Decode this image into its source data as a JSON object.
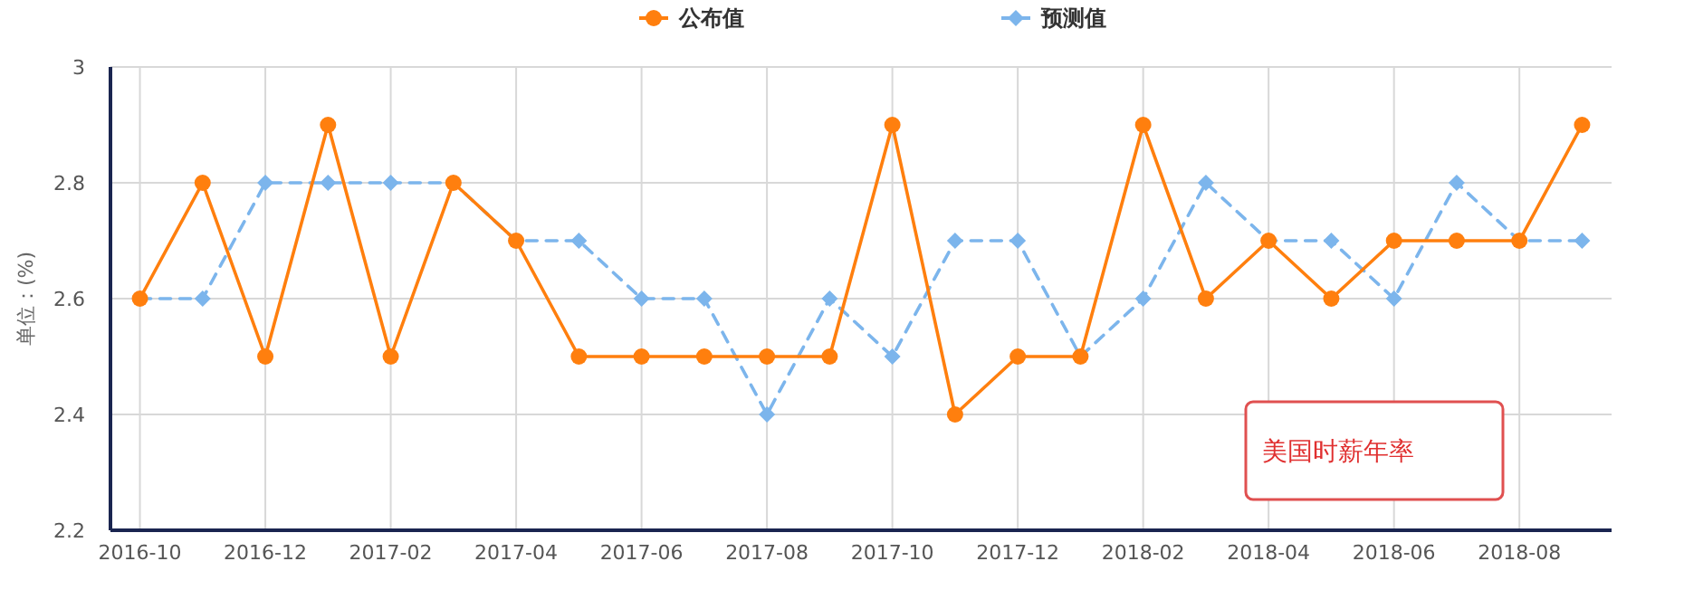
{
  "chart_data": {
    "type": "line",
    "ylabel": "单位：(%)",
    "categories": [
      "2016-10",
      null,
      "2016-12",
      null,
      "2017-02",
      null,
      "2017-04",
      null,
      "2017-06",
      null,
      "2017-08",
      null,
      "2017-10",
      null,
      "2017-12",
      null,
      "2018-02",
      null,
      "2018-04",
      null,
      "2018-06",
      null,
      "2018-08",
      null
    ],
    "series": [
      {
        "name": "公布值",
        "color": "#ff7f0e",
        "marker": "circle",
        "line_style": "solid",
        "values": [
          2.6,
          2.8,
          2.5,
          2.9,
          2.5,
          2.8,
          2.7,
          2.5,
          2.5,
          2.5,
          2.5,
          2.5,
          2.9,
          2.4,
          2.5,
          2.5,
          2.9,
          2.6,
          2.7,
          2.6,
          2.7,
          2.7,
          2.7,
          2.9
        ]
      },
      {
        "name": "预测值",
        "color": "#7cb5ec",
        "marker": "diamond",
        "line_style": "dashed",
        "values": [
          2.6,
          2.6,
          2.8,
          2.8,
          2.8,
          2.8,
          2.7,
          2.7,
          2.6,
          2.6,
          2.4,
          2.6,
          2.5,
          2.7,
          2.7,
          2.5,
          2.6,
          2.8,
          2.7,
          2.7,
          2.6,
          2.8,
          2.7,
          2.7
        ]
      }
    ],
    "ylim": [
      2.2,
      3
    ],
    "yticks": [
      2.2,
      2.4,
      2.6,
      2.8,
      3
    ],
    "grid": true,
    "legend": "top",
    "annotations": [
      "美国时薪年率"
    ]
  }
}
